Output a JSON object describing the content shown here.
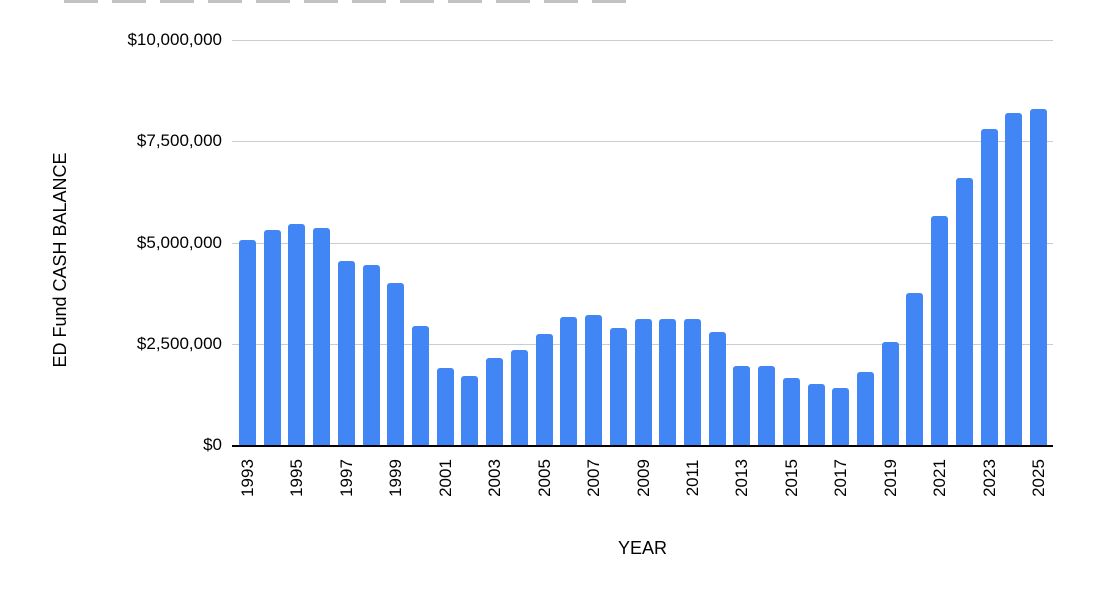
{
  "chart_data": {
    "type": "bar",
    "title": "",
    "xlabel": "YEAR",
    "ylabel": "ED Fund CASH BALANCE",
    "categories": [
      1993,
      1994,
      1995,
      1996,
      1997,
      1998,
      1999,
      2000,
      2001,
      2002,
      2003,
      2004,
      2005,
      2006,
      2007,
      2008,
      2009,
      2010,
      2011,
      2012,
      2013,
      2014,
      2015,
      2016,
      2017,
      2018,
      2019,
      2020,
      2021,
      2022,
      2023,
      2024,
      2025
    ],
    "values": [
      5050000,
      5300000,
      5450000,
      5350000,
      4550000,
      4450000,
      4000000,
      2950000,
      1900000,
      1700000,
      2150000,
      2350000,
      2750000,
      3150000,
      3200000,
      2900000,
      3100000,
      3100000,
      3100000,
      2800000,
      1950000,
      1950000,
      1650000,
      1500000,
      1400000,
      1800000,
      2550000,
      3750000,
      5650000,
      6600000,
      7800000,
      8200000,
      8300000
    ],
    "ylim": [
      0,
      10000000
    ],
    "y_tick_labels_top_to_bottom": [
      "$10,000,000",
      "$7,500,000",
      "$5,000,000",
      "$2,500,000",
      "$0"
    ],
    "x_tick_labels_shown": [
      "1993",
      "1995",
      "1997",
      "1999",
      "2001",
      "2003",
      "2005",
      "2007",
      "2009",
      "2011",
      "2013",
      "2015",
      "2017",
      "2019",
      "2021",
      "2023",
      "2025"
    ],
    "grid": "horizontal",
    "legend_position": "none",
    "bar_color": "#4285f4",
    "gridline_color": "#cccccc",
    "axis_line_color": "#000000",
    "text_color": "#000000"
  }
}
